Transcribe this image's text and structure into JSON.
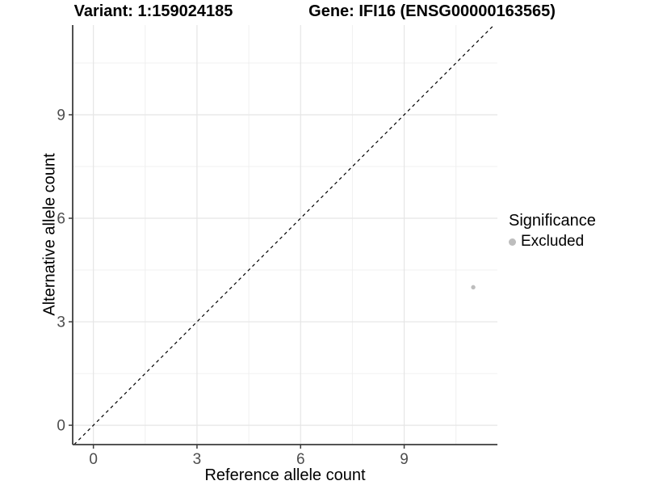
{
  "chart_data": {
    "type": "scatter",
    "title_left": "Variant: 1:159024185",
    "title_right": "Gene: IFI16 (ENSG00000163565)",
    "xlabel": "Reference allele count",
    "ylabel": "Alternative allele count",
    "xlim": [
      -0.6,
      11.7
    ],
    "ylim": [
      -0.56,
      11.6
    ],
    "x_ticks": [
      0,
      3,
      6,
      9
    ],
    "y_ticks": [
      0,
      3,
      6,
      9
    ],
    "x_minor_ticks": [
      1.5,
      4.5,
      7.5,
      10.5
    ],
    "y_minor_ticks": [
      1.5,
      4.5,
      7.5,
      10.5
    ],
    "grid": true,
    "identity_line": {
      "equation": "y = x",
      "style": "dashed",
      "color": "#000000"
    },
    "series": [
      {
        "name": "Excluded",
        "color": "#bdbdbd",
        "points": [
          {
            "x": 11,
            "y": 4
          }
        ]
      }
    ],
    "legend": {
      "title": "Significance",
      "position": "right",
      "items": [
        {
          "label": "Excluded",
          "color": "#bdbdbd"
        }
      ]
    },
    "colors": {
      "axis_line": "#3c3c3c",
      "tick_label": "#4d4d4d",
      "grid_major": "#e5e5e5",
      "grid_minor": "#f0f0f0"
    }
  }
}
